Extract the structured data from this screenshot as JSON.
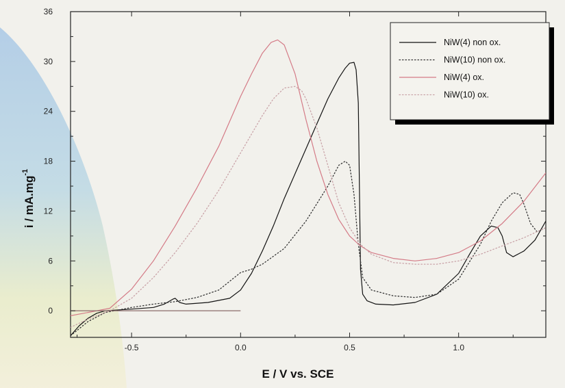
{
  "colors": {
    "background": "#f2f1ec",
    "ox_line": "#d47a86",
    "non_ox_line": "#111111",
    "dotted_non_ox": "#333333",
    "dotted_ox": "#c9a3a8"
  },
  "chart_data": {
    "type": "line",
    "title": "",
    "xlabel": "E /  V vs. SCE",
    "ylabel": "i /  mA.mg",
    "ylabel_superscript": "-1",
    "xlim": [
      -0.78,
      1.4
    ],
    "ylim": [
      -3.2,
      36
    ],
    "x_ticks": [
      -0.5,
      0.0,
      0.5,
      1.0
    ],
    "x_tick_labels": [
      "-0.5",
      "0.0",
      "0.5",
      "1.0"
    ],
    "y_ticks": [
      0,
      6,
      12,
      18,
      24,
      30,
      36
    ],
    "y_tick_labels": [
      "0",
      "6",
      "12",
      "18",
      "24",
      "30",
      "36"
    ],
    "grid": false,
    "legend_position": "top-right",
    "series": [
      {
        "name": "NiW(4)   non ox.",
        "style": "solid",
        "color": "#111111",
        "x": [
          -0.78,
          -0.74,
          -0.7,
          -0.66,
          -0.62,
          -0.5,
          -0.4,
          -0.35,
          -0.31,
          -0.3,
          -0.28,
          -0.25,
          -0.15,
          -0.05,
          0.0,
          0.05,
          0.1,
          0.15,
          0.2,
          0.25,
          0.3,
          0.35,
          0.4,
          0.45,
          0.48,
          0.5,
          0.52,
          0.53,
          0.54,
          0.55,
          0.56,
          0.58,
          0.62,
          0.7,
          0.8,
          0.9,
          1.0,
          1.05,
          1.1,
          1.15,
          1.18,
          1.2,
          1.22,
          1.25,
          1.3,
          1.35,
          1.4
        ],
        "y": [
          -3.0,
          -1.8,
          -0.9,
          -0.3,
          0.0,
          0.2,
          0.4,
          0.8,
          1.4,
          1.5,
          1.0,
          0.8,
          1.0,
          1.5,
          2.5,
          4.5,
          7.2,
          10.2,
          13.5,
          16.5,
          19.5,
          22.5,
          25.5,
          28.0,
          29.2,
          29.8,
          29.9,
          29.0,
          25.0,
          5.0,
          2.0,
          1.2,
          0.8,
          0.7,
          1.0,
          2.0,
          4.5,
          6.8,
          9.0,
          10.2,
          10.0,
          9.0,
          7.0,
          6.5,
          7.2,
          8.5,
          10.8
        ]
      },
      {
        "name": "NiW(10) non ox.",
        "style": "dotted",
        "color": "#333333",
        "x": [
          -0.78,
          -0.7,
          -0.62,
          -0.5,
          -0.4,
          -0.3,
          -0.2,
          -0.1,
          0.0,
          0.05,
          0.1,
          0.2,
          0.3,
          0.4,
          0.45,
          0.48,
          0.5,
          0.52,
          0.54,
          0.56,
          0.6,
          0.7,
          0.8,
          0.9,
          1.0,
          1.1,
          1.15,
          1.2,
          1.25,
          1.28,
          1.3,
          1.33,
          1.36,
          1.4
        ],
        "y": [
          -3.0,
          -1.3,
          -0.2,
          0.4,
          0.8,
          1.1,
          1.6,
          2.5,
          4.6,
          5.0,
          5.6,
          7.5,
          10.8,
          15.0,
          17.5,
          18.0,
          17.5,
          14.0,
          8.0,
          4.0,
          2.5,
          1.8,
          1.6,
          2.0,
          3.8,
          8.0,
          10.8,
          13.0,
          14.2,
          14.0,
          12.8,
          10.5,
          9.5,
          10.0
        ]
      },
      {
        "name": "NiW(4)   ox.",
        "style": "solid",
        "color": "#d47a86",
        "x": [
          -0.78,
          -0.7,
          -0.6,
          -0.5,
          -0.4,
          -0.3,
          -0.2,
          -0.1,
          0.0,
          0.05,
          0.1,
          0.14,
          0.17,
          0.2,
          0.25,
          0.3,
          0.35,
          0.4,
          0.45,
          0.5,
          0.55,
          0.6,
          0.7,
          0.8,
          0.9,
          1.0,
          1.1,
          1.2,
          1.3,
          1.4
        ],
        "y": [
          -0.6,
          -0.2,
          0.3,
          2.6,
          6.0,
          10.2,
          14.8,
          19.8,
          25.8,
          28.5,
          31.0,
          32.3,
          32.6,
          32.0,
          28.5,
          23.0,
          18.0,
          14.0,
          11.0,
          9.0,
          7.8,
          7.0,
          6.3,
          6.0,
          6.3,
          7.0,
          8.4,
          10.5,
          13.2,
          16.6
        ]
      },
      {
        "name": "NiW(10) ox.",
        "style": "dotted",
        "color": "#c9a3a8",
        "x": [
          -0.78,
          -0.7,
          -0.6,
          -0.5,
          -0.4,
          -0.3,
          -0.2,
          -0.1,
          0.0,
          0.1,
          0.15,
          0.2,
          0.25,
          0.28,
          0.3,
          0.35,
          0.4,
          0.45,
          0.5,
          0.55,
          0.6,
          0.7,
          0.8,
          0.9,
          1.0,
          1.1,
          1.2,
          1.3,
          1.4
        ],
        "y": [
          -2.0,
          -1.0,
          0.0,
          1.5,
          4.0,
          7.0,
          10.5,
          14.5,
          19.0,
          23.5,
          25.5,
          26.8,
          27.0,
          26.5,
          25.5,
          22.0,
          17.5,
          13.0,
          10.0,
          8.0,
          6.8,
          5.8,
          5.6,
          5.6,
          6.0,
          6.8,
          7.8,
          8.8,
          10.0
        ]
      },
      {
        "name": "",
        "style": "solid",
        "color": "#8b6a6a",
        "x": [
          -0.78,
          0.0
        ],
        "y": [
          0.0,
          0.0
        ]
      }
    ]
  }
}
